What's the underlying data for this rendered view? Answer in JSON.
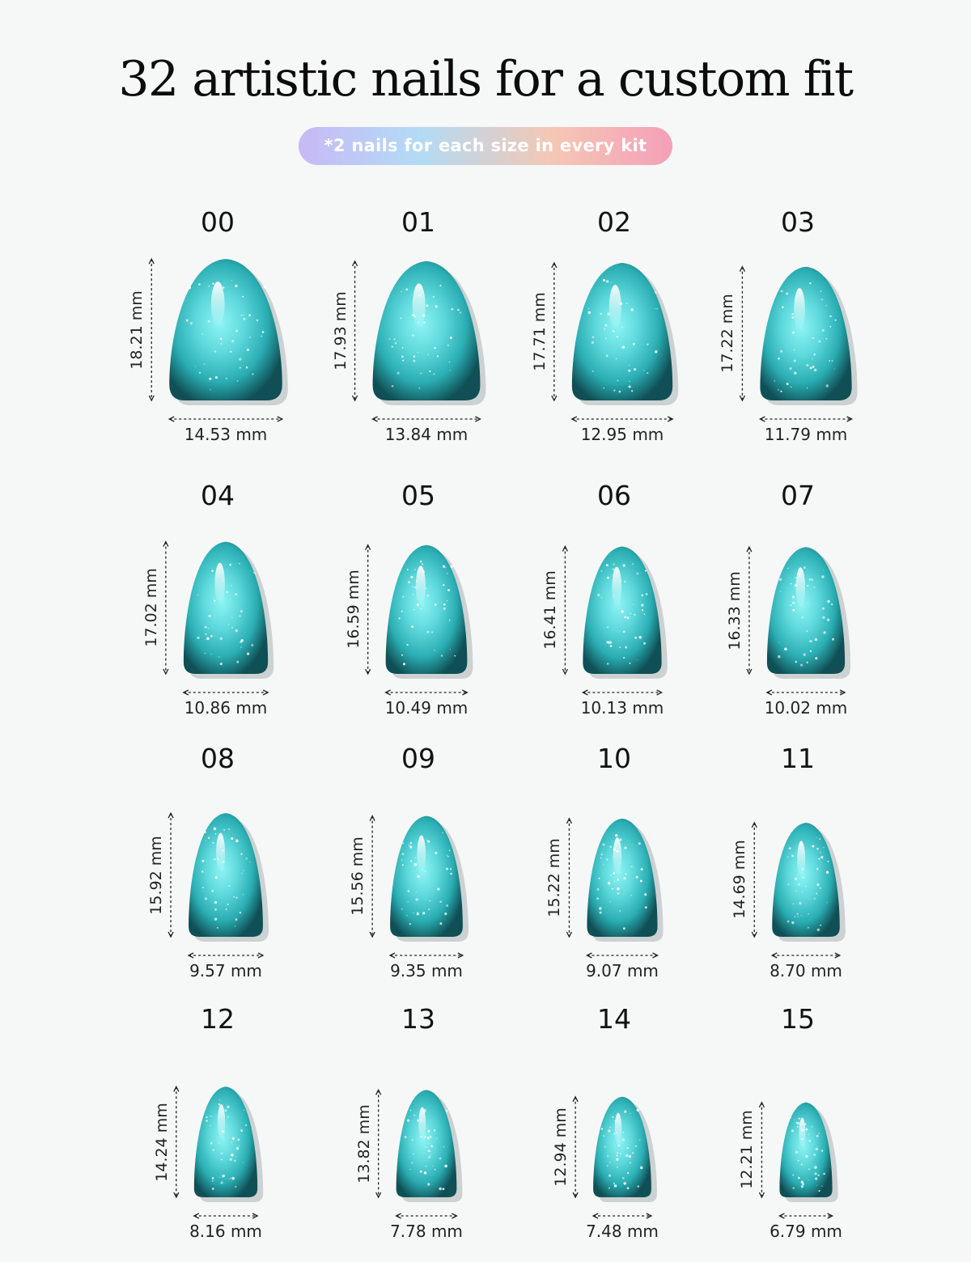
{
  "title": "32 artistic nails for a custom fit",
  "badge": "*2 nails for each size in every kit",
  "colors": {
    "nail_light": "#8ff4f4",
    "nail_mid": "#2aaeb3",
    "nail_dark": "#0f4f55",
    "badge_gradient": [
      "#c8b9f5",
      "#b2dbf5",
      "#f5c7b4",
      "#f59fb9"
    ]
  },
  "nails": [
    {
      "size": "00",
      "length": "18.21 mm",
      "width": "14.53 mm",
      "length_mm": 18.21,
      "width_mm": 14.53
    },
    {
      "size": "01",
      "length": "17.93 mm",
      "width": "13.84 mm",
      "length_mm": 17.93,
      "width_mm": 13.84
    },
    {
      "size": "02",
      "length": "17.71 mm",
      "width": "12.95 mm",
      "length_mm": 17.71,
      "width_mm": 12.95
    },
    {
      "size": "03",
      "length": "17.22 mm",
      "width": "11.79 mm",
      "length_mm": 17.22,
      "width_mm": 11.79
    },
    {
      "size": "04",
      "length": "17.02 mm",
      "width": "10.86 mm",
      "length_mm": 17.02,
      "width_mm": 10.86
    },
    {
      "size": "05",
      "length": "16.59 mm",
      "width": "10.49 mm",
      "length_mm": 16.59,
      "width_mm": 10.49
    },
    {
      "size": "06",
      "length": "16.41 mm",
      "width": "10.13 mm",
      "length_mm": 16.41,
      "width_mm": 10.13
    },
    {
      "size": "07",
      "length": "16.33 mm",
      "width": "10.02 mm",
      "length_mm": 16.33,
      "width_mm": 10.02
    },
    {
      "size": "08",
      "length": "15.92 mm",
      "width": "9.57 mm",
      "length_mm": 15.92,
      "width_mm": 9.57
    },
    {
      "size": "09",
      "length": "15.56 mm",
      "width": "9.35 mm",
      "length_mm": 15.56,
      "width_mm": 9.35
    },
    {
      "size": "10",
      "length": "15.22 mm",
      "width": "9.07 mm",
      "length_mm": 15.22,
      "width_mm": 9.07
    },
    {
      "size": "11",
      "length": "14.69 mm",
      "width": "8.70 mm",
      "length_mm": 14.69,
      "width_mm": 8.7
    },
    {
      "size": "12",
      "length": "14.24 mm",
      "width": "8.16 mm",
      "length_mm": 14.24,
      "width_mm": 8.16
    },
    {
      "size": "13",
      "length": "13.82 mm",
      "width": "7.78 mm",
      "length_mm": 13.82,
      "width_mm": 7.78
    },
    {
      "size": "14",
      "length": "12.94 mm",
      "width": "7.48 mm",
      "length_mm": 12.94,
      "width_mm": 7.48
    },
    {
      "size": "15",
      "length": "12.21 mm",
      "width": "6.79 mm",
      "length_mm": 12.21,
      "width_mm": 6.79
    }
  ]
}
